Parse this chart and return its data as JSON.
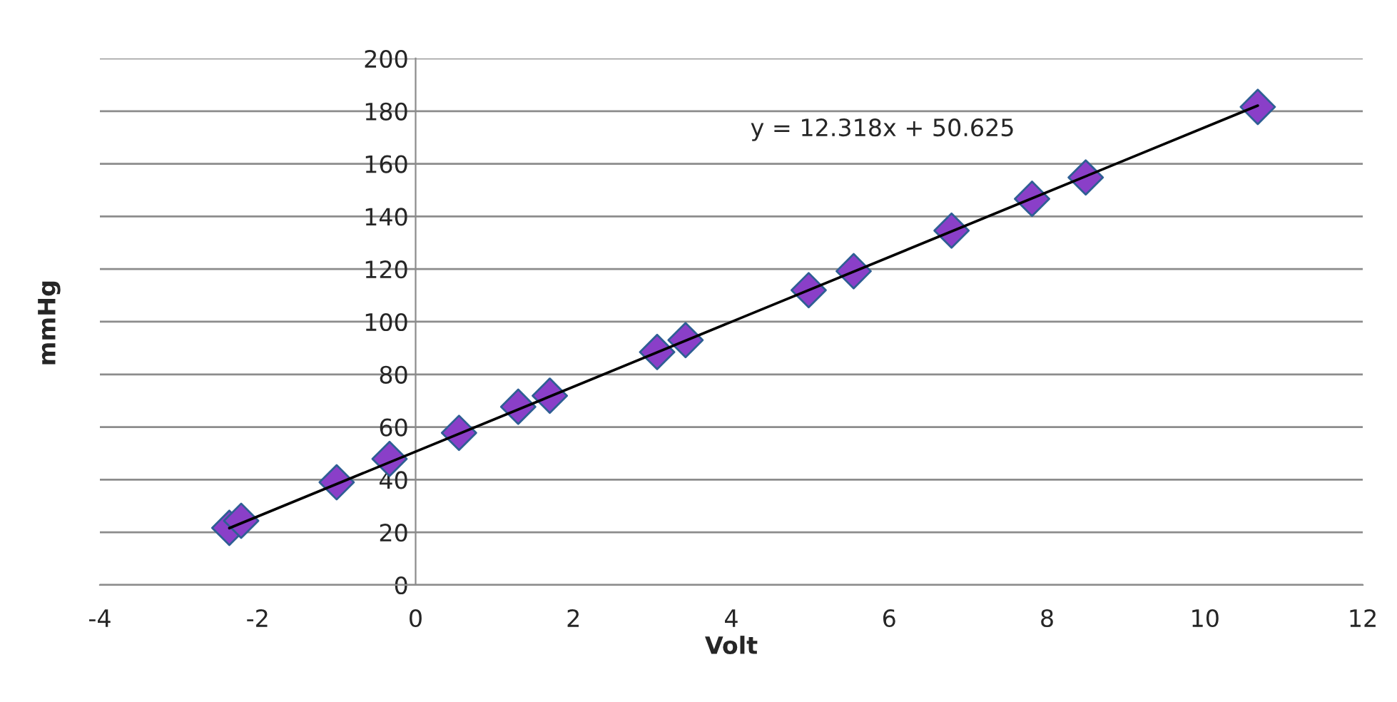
{
  "chart_data": {
    "type": "scatter",
    "xlabel": "Volt",
    "ylabel": "mmHg",
    "xlim": [
      -4,
      12
    ],
    "xticks": [
      -4,
      -2,
      0,
      2,
      4,
      6,
      8,
      10,
      12
    ],
    "ylim": [
      0,
      200
    ],
    "yticks": [
      0,
      20,
      40,
      60,
      80,
      100,
      120,
      140,
      160,
      180,
      200
    ],
    "grid": "y",
    "legend": false,
    "series": [
      {
        "marker": "diamond",
        "color": "#8a3fc8",
        "x": [
          -2.36,
          -2.21,
          -1.0,
          -0.33,
          0.55,
          1.3,
          1.7,
          3.06,
          3.42,
          4.98,
          5.55,
          6.79,
          7.81,
          8.49,
          10.67
        ],
        "values": [
          21.7,
          24.4,
          39,
          47.9,
          57.8,
          67.7,
          71.9,
          88.5,
          93,
          112,
          119.2,
          134.6,
          146.7,
          154.8,
          181.6
        ]
      },
      {
        "type": "line",
        "color": "#000000",
        "x": [
          -2.36,
          10.67
        ],
        "values": [
          21.6,
          182.1
        ]
      }
    ],
    "annotations": [
      "y = 12.318x + 50.625"
    ]
  }
}
